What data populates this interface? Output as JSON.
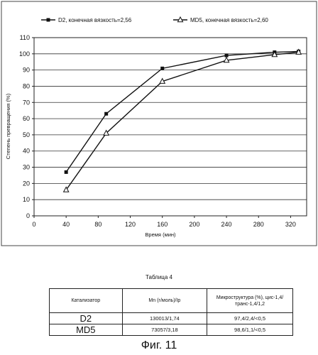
{
  "chart_data": {
    "type": "line",
    "title": "",
    "xlabel": "Время (мин)",
    "ylabel": "Степень превращения (%)",
    "xlim": [
      0,
      340
    ],
    "ylim": [
      0,
      110
    ],
    "xticks": [
      0,
      40,
      80,
      120,
      160,
      200,
      240,
      280,
      320
    ],
    "yticks": [
      0,
      10,
      20,
      30,
      40,
      50,
      60,
      70,
      80,
      90,
      100,
      110
    ],
    "grid": "horizontal",
    "legend_position": "top",
    "series": [
      {
        "name": "D2, конечная вязкость=2,56",
        "marker": "square",
        "x": [
          40,
          90,
          160,
          240,
          300,
          330
        ],
        "y": [
          27,
          63,
          91,
          99,
          101,
          101.5
        ]
      },
      {
        "name": "MD5, конечная вязкость=2,60",
        "marker": "triangle",
        "x": [
          40,
          90,
          160,
          240,
          300,
          330
        ],
        "y": [
          16,
          51,
          83,
          96,
          99.5,
          101
        ]
      }
    ]
  },
  "table": {
    "caption": "Таблица 4",
    "headers": [
      "Катализатор",
      "Mn (г/моль)/Ip",
      "Микроструктура (%), цис-1,4/транс-1,4/1,2"
    ],
    "rows": [
      [
        "D2",
        "130013/1,74",
        "97,4/2,4/<0,5"
      ],
      [
        "MD5",
        "73057/3,18",
        "98,6/1,1/<0,5"
      ]
    ]
  },
  "figure_caption": "Фиг. 11"
}
